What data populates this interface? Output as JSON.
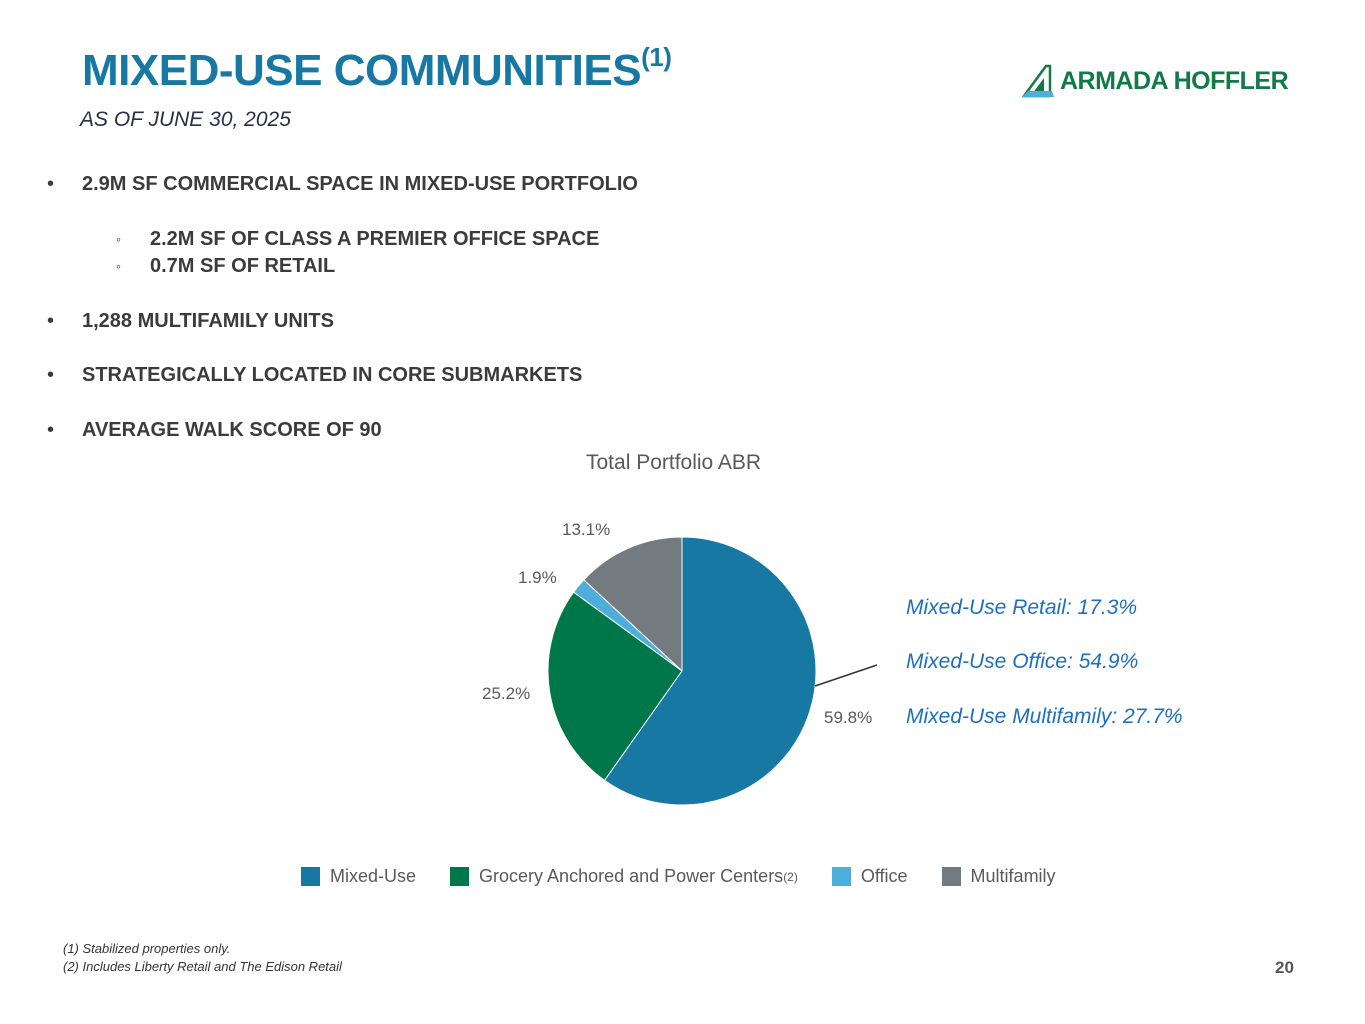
{
  "header": {
    "title": "MIXED-USE COMMUNITIES",
    "title_sup": "(1)",
    "subtitle": "AS OF JUNE 30, 2025",
    "logo_text": "ARMADA HOFFLER"
  },
  "bullets": [
    {
      "marker": "•",
      "text": "2.9M SF COMMERCIAL SPACE IN MIXED-USE PORTFOLIO"
    },
    {
      "marker": "◦",
      "text": "2.2M SF OF CLASS A PREMIER OFFICE SPACE"
    },
    {
      "marker": "◦",
      "text": "0.7M SF OF RETAIL"
    },
    {
      "marker": "•",
      "text": "1,288 MULTIFAMILY UNITS"
    },
    {
      "marker": "•",
      "text": "STRATEGICALLY LOCATED IN CORE SUBMARKETS"
    },
    {
      "marker": "•",
      "text": "AVERAGE WALK SCORE OF 90"
    }
  ],
  "chart_data": {
    "type": "pie",
    "title": "Total Portfolio ABR",
    "categories": [
      "Mixed-Use",
      "Grocery Anchored and Power Centers",
      "Office",
      "Multifamily"
    ],
    "values": [
      59.8,
      25.2,
      1.9,
      13.1
    ],
    "labels": [
      "59.8%",
      "25.2%",
      "1.9%",
      "13.1%"
    ],
    "colors": [
      "#1778a3",
      "#00774a",
      "#4eaedb",
      "#737a80"
    ],
    "legend_placement": "bottom",
    "legend_sup": "(2)"
  },
  "callouts": [
    "Mixed-Use Retail: 17.3%",
    "Mixed-Use Office: 54.9%",
    "Mixed-Use Multifamily: 27.7%"
  ],
  "footnotes": [
    "(1) Stabilized properties only.",
    "(2) Includes Liberty Retail and The Edison Retail"
  ],
  "page_number": "20"
}
